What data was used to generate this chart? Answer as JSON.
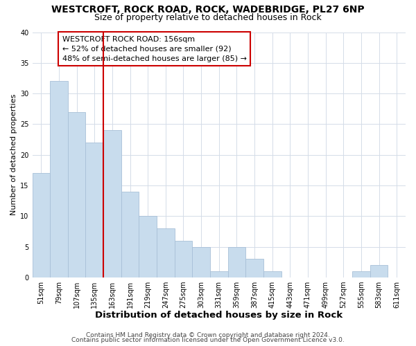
{
  "title": "WESTCROFT, ROCK ROAD, ROCK, WADEBRIDGE, PL27 6NP",
  "subtitle": "Size of property relative to detached houses in Rock",
  "xlabel": "Distribution of detached houses by size in Rock",
  "ylabel": "Number of detached properties",
  "bar_color": "#c8dced",
  "bar_edgecolor": "#a8c0d8",
  "vline_x": 3.5,
  "vline_color": "#cc0000",
  "categories": [
    "51sqm",
    "79sqm",
    "107sqm",
    "135sqm",
    "163sqm",
    "191sqm",
    "219sqm",
    "247sqm",
    "275sqm",
    "303sqm",
    "331sqm",
    "359sqm",
    "387sqm",
    "415sqm",
    "443sqm",
    "471sqm",
    "499sqm",
    "527sqm",
    "555sqm",
    "583sqm",
    "611sqm"
  ],
  "values": [
    17,
    32,
    27,
    22,
    24,
    14,
    10,
    8,
    6,
    5,
    1,
    5,
    3,
    1,
    0,
    0,
    0,
    0,
    1,
    2,
    0
  ],
  "ylim": [
    0,
    40
  ],
  "annotation_title": "WESTCROFT ROCK ROAD: 156sqm",
  "annotation_line1": "← 52% of detached houses are smaller (92)",
  "annotation_line2": "48% of semi-detached houses are larger (85) →",
  "footer1": "Contains HM Land Registry data © Crown copyright and database right 2024.",
  "footer2": "Contains public sector information licensed under the Open Government Licence v3.0.",
  "annotation_box_edgecolor": "#cc0000",
  "annotation_box_facecolor": "#ffffff",
  "background_color": "#ffffff",
  "grid_color": "#d4dce8",
  "title_fontsize": 10,
  "subtitle_fontsize": 9,
  "xlabel_fontsize": 9.5,
  "ylabel_fontsize": 8,
  "tick_fontsize": 7,
  "footer_fontsize": 6.5,
  "annotation_fontsize": 8
}
